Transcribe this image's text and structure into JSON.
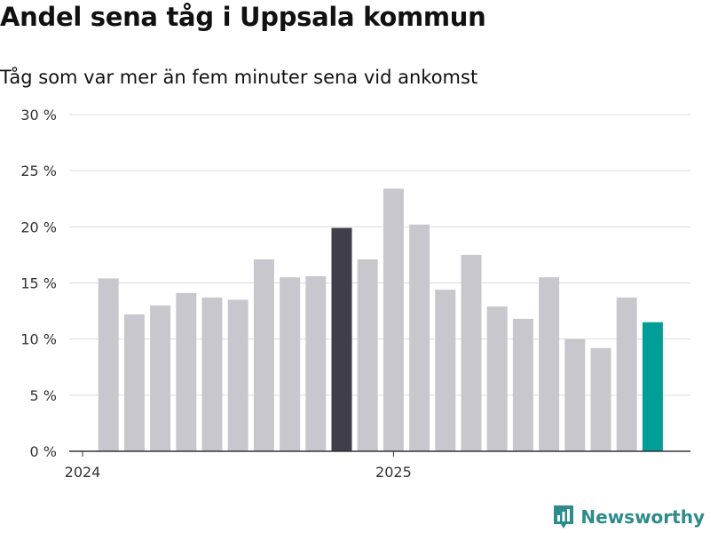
{
  "header": {
    "title": "Andel sena tåg i Uppsala kommun",
    "subtitle": "Tåg som var mer än fem minuter sena vid ankomst"
  },
  "brand": {
    "name": "Newsworthy",
    "icon": "newsworthy-logo-icon"
  },
  "colors": {
    "default_bar": "#c8c7ce",
    "highlight_bar": "#3f3e4a",
    "latest_bar": "#009e96",
    "grid": "#dddddd",
    "axis": "#333333",
    "brand": "#2e8b8b"
  },
  "chart_data": {
    "type": "bar",
    "title": "Andel sena tåg i Uppsala kommun",
    "subtitle": "Tåg som var mer än fem minuter sena vid ankomst",
    "xlabel": "",
    "ylabel": "",
    "ylim": [
      0,
      30
    ],
    "yticks": [
      0,
      5,
      10,
      15,
      20,
      25,
      30
    ],
    "ytick_suffix": " %",
    "grid": true,
    "x_tick_labels": [
      {
        "label": "2024",
        "index": 0
      },
      {
        "label": "2025",
        "index": 12
      }
    ],
    "categories": [
      "2024-01",
      "2024-02",
      "2024-03",
      "2024-04",
      "2024-05",
      "2024-06",
      "2024-07",
      "2024-08",
      "2024-09",
      "2024-10",
      "2024-11",
      "2024-12",
      "2025-01",
      "2025-02",
      "2025-03",
      "2025-04",
      "2025-05",
      "2025-06",
      "2025-07",
      "2025-08",
      "2025-09",
      "2025-10",
      "2025-11",
      "2025-12"
    ],
    "values": [
      null,
      15.4,
      12.2,
      13.0,
      14.1,
      13.7,
      13.5,
      17.1,
      15.5,
      15.6,
      19.9,
      17.1,
      23.4,
      20.2,
      14.4,
      17.5,
      12.9,
      11.8,
      15.5,
      10.0,
      9.2,
      13.7,
      11.5,
      null
    ],
    "highlight": [
      {
        "index": 10,
        "style": "highlight_bar"
      },
      {
        "index": 22,
        "style": "latest_bar"
      }
    ]
  }
}
